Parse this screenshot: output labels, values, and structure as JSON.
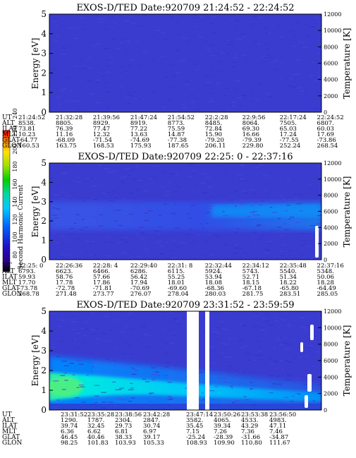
{
  "colorbar": {
    "label": "Second Harmonic Current",
    "ticks": [
      "80",
      "100",
      "120",
      "140",
      "160",
      "180",
      "200",
      "220",
      "240"
    ]
  },
  "rows_labels": [
    "UT",
    "ALT",
    "ILAT",
    "MLT",
    "GLAT",
    "GLON"
  ],
  "chart_data": [
    {
      "type": "heatmap",
      "title": "EXOS-D/TED   Date:920709  21:24:52 - 22:24:52",
      "ylabel": "Energy [eV]",
      "y2label": "Temperature [K]",
      "ylim": [
        0,
        5
      ],
      "y_ticks": [
        "0",
        "1",
        "2",
        "3",
        "4",
        "5"
      ],
      "y2lim": [
        0,
        12000
      ],
      "y2_ticks": [
        "0",
        "2000",
        "4000",
        "6000",
        "8000",
        "10000",
        "12000"
      ],
      "ephemeris": [
        [
          "21:24:52",
          "21:32:28",
          "21:39:56",
          "21:47:24",
          "21:54:52",
          "22:2:28",
          "22:9:56",
          "22:17:24",
          "22:24:52"
        ],
        [
          "8538.",
          "8805.",
          "8929.",
          "8919.",
          "8773.",
          "8485.",
          "8064.",
          "7505.",
          "6807."
        ],
        [
          "73.81",
          "76.39",
          "77.47",
          "77.22",
          "75.59",
          "72.84",
          "69.30",
          "65.03",
          "60.03"
        ],
        [
          "10.23",
          "11.16",
          "12.32",
          "13.63",
          "14.87",
          "15.90",
          "16.66",
          "17.24",
          "17.69"
        ],
        [
          "-64.77",
          "-68.09",
          "-71.54",
          "-74.69",
          "-77.38",
          "-79.20",
          "-79.39",
          "-77.55",
          "-73.86"
        ],
        [
          "160.53",
          "163.75",
          "168.53",
          "175.93",
          "187.65",
          "206.11",
          "229.80",
          "252.24",
          "268.54"
        ]
      ],
      "intensity_description": "uniform background level across full time range"
    },
    {
      "type": "heatmap",
      "title": "EXOS-D/TED   Date:920709  22:25: 0 - 22:37:16",
      "ylabel": "Energy [eV]",
      "y2label": "Temperature [K]",
      "ylim": [
        0,
        5
      ],
      "y_ticks": [
        "0",
        "1",
        "2",
        "3",
        "4",
        "5"
      ],
      "y2lim": [
        0,
        12000
      ],
      "y2_ticks": [
        "0",
        "2000",
        "4000",
        "6000",
        "8000",
        "10000",
        "12000"
      ],
      "ephemeris": [
        [
          "22:25: 0",
          "22:26:36",
          "22:28: 4",
          "22:29:40",
          "22:31: 8",
          "22:32:44",
          "22:34:12",
          "22:35:48",
          "22:37:16"
        ],
        [
          "6793.",
          "6623.",
          "6466.",
          "6286.",
          "6115.",
          "5924.",
          "5743.",
          "5540.",
          "5348."
        ],
        [
          "59.93",
          "58.76",
          "57.66",
          "56.42",
          "55.25",
          "53.94",
          "52.71",
          "51.34",
          "50.06"
        ],
        [
          "17.70",
          "17.78",
          "17.86",
          "17.94",
          "18.01",
          "18.08",
          "18.15",
          "18.22",
          "18.28"
        ],
        [
          "-73.78",
          "-72.78",
          "-71.81",
          "-70.69",
          "-69.60",
          "-68.36",
          "-67.18",
          "-65.80",
          "-64.49"
        ],
        [
          "268.78",
          "271.48",
          "273.77",
          "276.07",
          "278.04",
          "280.03",
          "281.75",
          "283.51",
          "285.05"
        ]
      ],
      "intensity_description": "enhanced band around 1.5-3.5 eV, stronger toward later times"
    },
    {
      "type": "heatmap",
      "title": "EXOS-D/TED   Date:920709  23:31:52 - 23:59:59",
      "ylabel": "Energy [eV]",
      "y2label": "Temperature [K]",
      "ylim": [
        0,
        5
      ],
      "y_ticks": [
        "0",
        "1",
        "2",
        "3",
        "4",
        "5"
      ],
      "y2lim": [
        0,
        12000
      ],
      "y2_ticks": [
        "0",
        "2000",
        "4000",
        "6000",
        "8000",
        "10000",
        "12000"
      ],
      "ephemeris": [
        [
          "23:31:52",
          "23:35:28",
          "23:38:56",
          "23:42:28",
          "23:47:14",
          "23:50:26",
          "23:53:38",
          "23:56:50"
        ],
        [
          "1290.",
          "1787.",
          "2304.",
          "2847.",
          "3582.",
          "4065.",
          "4533.",
          "4983."
        ],
        [
          "39.74",
          "32.45",
          "29.73",
          "30.74",
          "35.45",
          "39.34",
          "43.29",
          "47.11"
        ],
        [
          "6.36",
          "6.62",
          "6.81",
          "6.97",
          "7.15",
          "7.26",
          "7.36",
          "7.46"
        ],
        [
          "46.45",
          "40.46",
          "38.33",
          "39.17",
          "-25.24",
          "-28.39",
          "-31.66",
          "-34.87"
        ],
        [
          "98.25",
          "101.83",
          "103.93",
          "105.33",
          "108.93",
          "109.90",
          "110.80",
          "111.67"
        ]
      ],
      "intensity_description": "strong low-energy enhancement below ~2 eV decreasing with time; data gaps"
    }
  ]
}
